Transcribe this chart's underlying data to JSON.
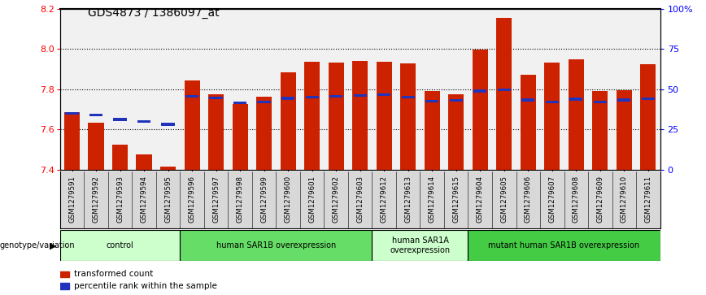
{
  "title": "GDS4873 / 1386097_at",
  "samples": [
    "GSM1279591",
    "GSM1279592",
    "GSM1279593",
    "GSM1279594",
    "GSM1279595",
    "GSM1279596",
    "GSM1279597",
    "GSM1279598",
    "GSM1279599",
    "GSM1279600",
    "GSM1279601",
    "GSM1279602",
    "GSM1279603",
    "GSM1279612",
    "GSM1279613",
    "GSM1279614",
    "GSM1279615",
    "GSM1279604",
    "GSM1279605",
    "GSM1279606",
    "GSM1279607",
    "GSM1279608",
    "GSM1279609",
    "GSM1279610",
    "GSM1279611"
  ],
  "transformed_count": [
    7.685,
    7.635,
    7.525,
    7.475,
    7.415,
    7.845,
    7.775,
    7.725,
    7.762,
    7.885,
    7.938,
    7.932,
    7.94,
    7.938,
    7.93,
    7.79,
    7.775,
    7.998,
    8.155,
    7.87,
    7.932,
    7.948,
    7.792,
    7.795,
    7.925
  ],
  "percentile_rank": [
    7.673,
    7.665,
    7.643,
    7.633,
    7.619,
    7.758,
    7.75,
    7.725,
    7.73,
    7.748,
    7.753,
    7.758,
    7.762,
    7.768,
    7.755,
    7.734,
    7.738,
    7.785,
    7.79,
    7.74,
    7.73,
    7.744,
    7.73,
    7.74,
    7.746
  ],
  "groups": [
    {
      "label": "control",
      "start": 0,
      "end": 5,
      "color": "#ccffcc"
    },
    {
      "label": "human SAR1B overexpression",
      "start": 5,
      "end": 13,
      "color": "#66dd66"
    },
    {
      "label": "human SAR1A\noverexpression",
      "start": 13,
      "end": 17,
      "color": "#ccffcc"
    },
    {
      "label": "mutant human SAR1B overexpression",
      "start": 17,
      "end": 25,
      "color": "#44cc44"
    }
  ],
  "ylim": [
    7.4,
    8.2
  ],
  "yticks": [
    7.4,
    7.6,
    7.8,
    8.0,
    8.2
  ],
  "bar_color": "#cc2200",
  "percentile_color": "#2233bb",
  "bar_bottom": 7.4,
  "right_ytick_vals": [
    7.4,
    7.6,
    7.8,
    8.0,
    8.2
  ],
  "right_ytick_labels": [
    "0",
    "25",
    "50",
    "75",
    "100%"
  ],
  "tick_bg_color": "#d8d8d8",
  "plot_bg_color": "#ffffff"
}
